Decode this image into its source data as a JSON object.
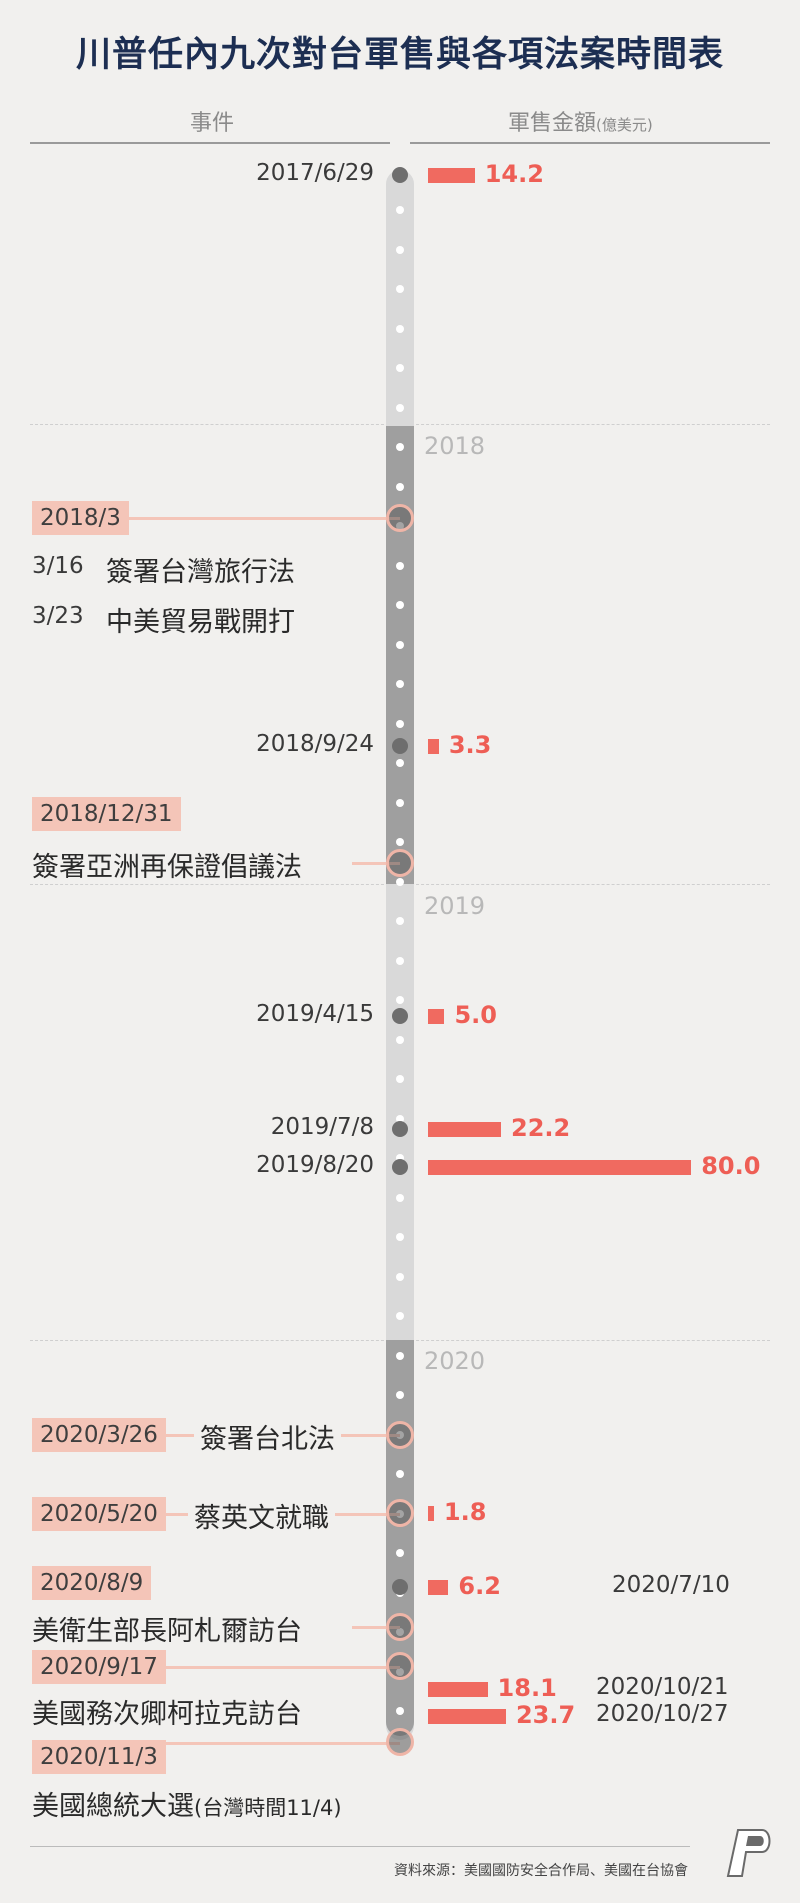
{
  "title": "川普任內九次對台軍售與各項法案時間表",
  "headers": {
    "events": "事件",
    "amount": "軍售金額",
    "unit": "(億美元)"
  },
  "years": [
    "2018",
    "2019",
    "2020"
  ],
  "colors": {
    "bar": "#f06a60",
    "value_text": "#ee5e55",
    "tag_bg": "#f4c5b8",
    "title": "#1c2e52"
  },
  "chart_data": {
    "type": "bar",
    "title": "川普任內九次對台軍售與各項法案時間表",
    "xlabel": "",
    "ylabel": "軍售金額(億美元)",
    "categories": [
      "2017/6/29",
      "2018/9/24",
      "2019/4/15",
      "2019/7/8",
      "2019/8/20",
      "2020/5/20",
      "2020/7/10",
      "2020/10/21",
      "2020/10/27"
    ],
    "values": [
      14.2,
      3.3,
      5.0,
      22.2,
      80.0,
      1.8,
      6.2,
      18.1,
      23.7
    ],
    "value_labels": [
      "14.2",
      "3.3",
      "5.0",
      "22.2",
      "80.0",
      "1.8",
      "6.2",
      "18.1",
      "23.7"
    ]
  },
  "events": [
    {
      "tag": "2018/3",
      "lines": [
        {
          "date": "3/16",
          "text": "簽署台灣旅行法"
        },
        {
          "date": "3/23",
          "text": "中美貿易戰開打"
        }
      ]
    },
    {
      "tag": "2018/12/31",
      "text": "簽署亞洲再保證倡議法"
    },
    {
      "tag": "2020/3/26",
      "text": "簽署台北法"
    },
    {
      "tag": "2020/5/20",
      "text": "蔡英文就職"
    },
    {
      "tag": "2020/8/9",
      "text": "美衛生部長阿札爾訪台"
    },
    {
      "tag": "2020/9/17",
      "text": "美國務次卿柯拉克訪台"
    },
    {
      "tag": "2020/11/3",
      "text": "美國總統大選",
      "note": "(台灣時間11/4)"
    }
  ],
  "source": "資料來源：美國國防安全合作局、美國在台協會"
}
